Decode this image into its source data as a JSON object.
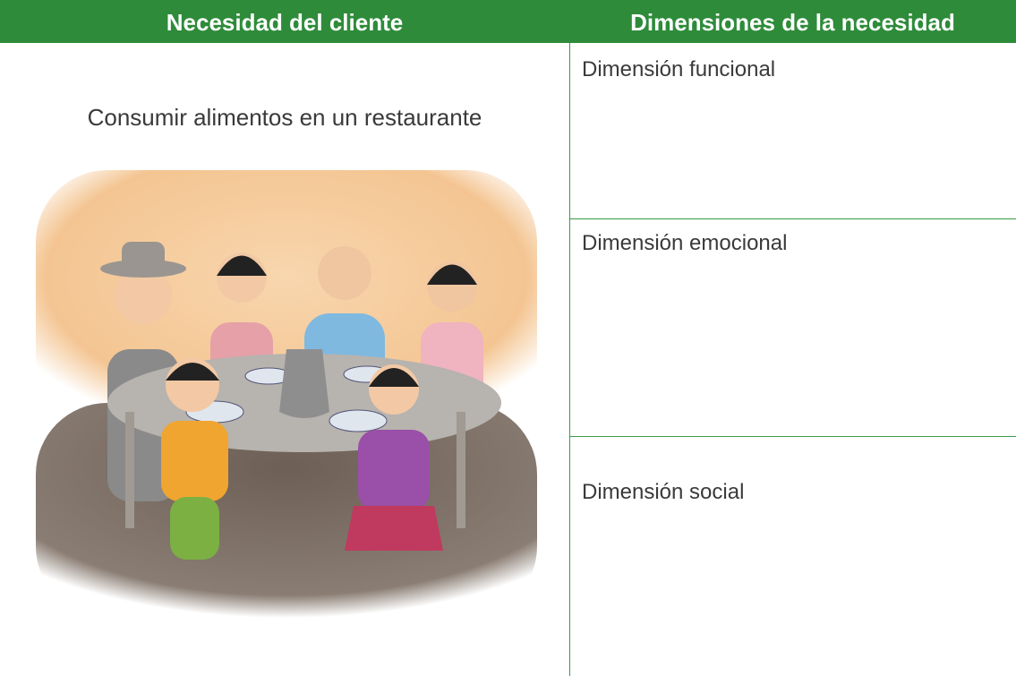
{
  "header": {
    "columns": [
      "Necesidad del cliente",
      "Dimensiones de la necesidad"
    ]
  },
  "left": {
    "text": "Consumir alimentos en un restaurante"
  },
  "rows": [
    "Dimensión funcional",
    "Dimensión emocional",
    "Dimensión social"
  ]
}
